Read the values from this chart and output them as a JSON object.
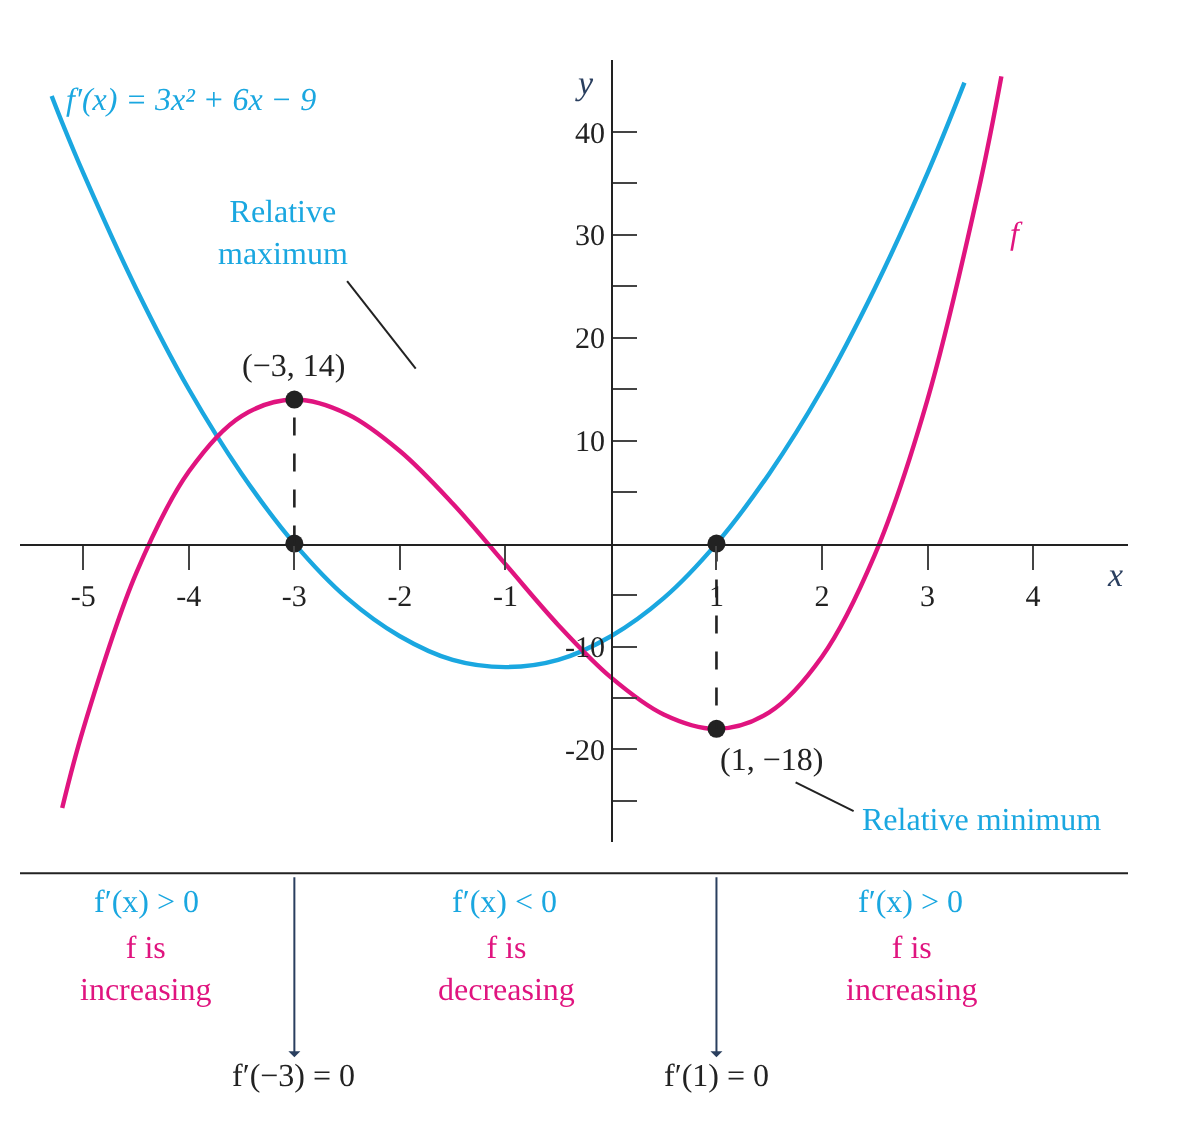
{
  "chart_data": {
    "type": "line",
    "x": [
      -5.3,
      -5.2,
      -5,
      -4.5,
      -4,
      -3.5,
      -3,
      -2.5,
      -2,
      -1.5,
      -1,
      -0.5,
      0,
      0.5,
      1,
      1.5,
      2,
      2.5,
      3,
      3.35
    ],
    "series": [
      {
        "name": "f′(x) = 3x² + 6x − 9",
        "color": "#1aa7e0",
        "values": [
          43.5,
          40.9,
          36,
          24.8,
          15,
          6.8,
          0,
          -5.3,
          -9,
          -11.3,
          -12,
          -11.3,
          -9,
          -5.3,
          0,
          6.8,
          15,
          24.8,
          36,
          44.8
        ]
      },
      {
        "name": "f",
        "color": "#e0147f",
        "x": [
          -5.2,
          -5,
          -4.5,
          -4,
          -3.5,
          -3,
          -2.5,
          -2,
          -1.5,
          -1,
          -0.5,
          0,
          0.5,
          1,
          1.5,
          2,
          2.5,
          3,
          3.5,
          3.7
        ],
        "values": [
          -25.7,
          -18,
          -2.9,
          7,
          12.4,
          14,
          12.6,
          9,
          3.9,
          -2,
          -7.9,
          -13,
          -16.6,
          -18,
          -16.4,
          -11,
          -1.1,
          14,
          35.1,
          45.4
        ]
      },
      {
        "color": "#222222",
        "type": "scatter",
        "marker": "circle",
        "x": [
          -3,
          1,
          -3,
          1
        ],
        "values": [
          14,
          -18,
          0,
          0
        ]
      },
      {
        "color": "#222222",
        "line_style": "dashed",
        "x": [
          -3,
          -3
        ],
        "values": [
          0,
          14
        ]
      },
      {
        "color": "#222222",
        "line_style": "dashed",
        "x": [
          1,
          1
        ],
        "values": [
          0,
          -18
        ]
      }
    ],
    "xlabel": "x",
    "ylabel": "y",
    "xlim": [
      -5.6,
      4.9
    ],
    "ylim": [
      -29,
      47
    ],
    "xticks": [
      -5,
      -4,
      -3,
      -2,
      -1,
      1,
      2,
      3,
      4
    ],
    "yticks": [
      {
        "value": -25,
        "label": null
      },
      -20,
      {
        "value": -15,
        "label": null
      },
      -10,
      {
        "value": -5,
        "label": null
      },
      {
        "value": 5,
        "label": null
      },
      10,
      {
        "value": 15,
        "label": null
      },
      20,
      {
        "value": 25,
        "label": null
      },
      30,
      {
        "value": 35,
        "label": null
      },
      40
    ],
    "marker": "none",
    "legend": false,
    "annotations": [
      "Relative\nmaximum",
      {
        "text": "(−3, 14)",
        "x": -3,
        "y": 14
      },
      {
        "text": "(1, −18)",
        "x": 1,
        "y": -18
      },
      "Relative minimum",
      "f′(x) > 0",
      "f is\nincreasing",
      "f′(x) < 0",
      "f is\ndecreasing",
      "f′(x) > 0",
      "f is\nincreasing",
      "f′(−3) = 0",
      "f′(1) = 0"
    ]
  }
}
